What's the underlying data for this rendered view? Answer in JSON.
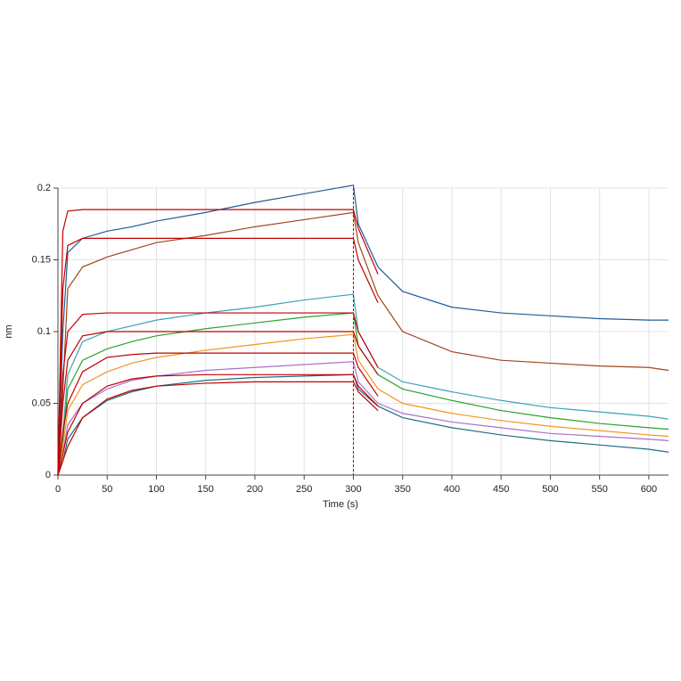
{
  "chart_data": {
    "type": "line",
    "x_label": "Time (s)",
    "y_label": "nm",
    "x": [
      0,
      5,
      10,
      25,
      50,
      75,
      100,
      150,
      200,
      250,
      300,
      305,
      325,
      350,
      400,
      450,
      500,
      550,
      600,
      620
    ],
    "series": [
      {
        "color": "#1f5c99",
        "values": [
          0,
          0.1,
          0.155,
          0.165,
          0.17,
          0.173,
          0.177,
          0.183,
          0.19,
          0.196,
          0.202,
          0.175,
          0.145,
          0.128,
          0.117,
          0.113,
          0.111,
          0.109,
          0.108,
          0.108
        ]
      },
      {
        "color": "#a0461c",
        "values": [
          0,
          0.06,
          0.13,
          0.145,
          0.152,
          0.157,
          0.162,
          0.167,
          0.173,
          0.178,
          0.183,
          0.162,
          0.125,
          0.1,
          0.086,
          0.08,
          0.078,
          0.076,
          0.075,
          0.073
        ]
      },
      {
        "color": "#3aa3b3",
        "values": [
          0,
          0.03,
          0.07,
          0.093,
          0.1,
          0.104,
          0.108,
          0.113,
          0.117,
          0.122,
          0.126,
          0.1,
          0.075,
          0.065,
          0.058,
          0.052,
          0.047,
          0.044,
          0.041,
          0.039
        ]
      },
      {
        "color": "#2ca02c",
        "values": [
          0,
          0.025,
          0.06,
          0.08,
          0.088,
          0.093,
          0.097,
          0.102,
          0.106,
          0.11,
          0.113,
          0.09,
          0.07,
          0.06,
          0.052,
          0.045,
          0.04,
          0.036,
          0.033,
          0.032
        ]
      },
      {
        "color": "#f0961e",
        "values": [
          0,
          0.02,
          0.045,
          0.063,
          0.072,
          0.078,
          0.082,
          0.087,
          0.091,
          0.095,
          0.098,
          0.08,
          0.06,
          0.05,
          0.043,
          0.038,
          0.034,
          0.031,
          0.028,
          0.027
        ]
      },
      {
        "color": "#a86fd0",
        "values": [
          0,
          0.015,
          0.035,
          0.05,
          0.06,
          0.066,
          0.069,
          0.073,
          0.075,
          0.077,
          0.079,
          0.065,
          0.05,
          0.043,
          0.037,
          0.033,
          0.029,
          0.027,
          0.025,
          0.024
        ]
      },
      {
        "color": "#1e6e80",
        "values": [
          0,
          0.01,
          0.025,
          0.04,
          0.052,
          0.058,
          0.062,
          0.066,
          0.068,
          0.069,
          0.07,
          0.06,
          0.048,
          0.04,
          0.033,
          0.028,
          0.024,
          0.021,
          0.018,
          0.016
        ]
      },
      {
        "color": "#c00000",
        "values": [
          0,
          0.17,
          0.184,
          0.185,
          0.185,
          0.185,
          0.185,
          0.185,
          0.185,
          0.185,
          0.185,
          0.172,
          0.14,
          null,
          null,
          null,
          null,
          null,
          null,
          null
        ]
      },
      {
        "color": "#c00000",
        "values": [
          0,
          0.13,
          0.16,
          0.165,
          0.165,
          0.165,
          0.165,
          0.165,
          0.165,
          0.165,
          0.165,
          0.15,
          0.12,
          null,
          null,
          null,
          null,
          null,
          null,
          null
        ]
      },
      {
        "color": "#c00000",
        "values": [
          0,
          0.07,
          0.1,
          0.112,
          0.113,
          0.113,
          0.113,
          0.113,
          0.113,
          0.113,
          0.113,
          0.1,
          0.075,
          null,
          null,
          null,
          null,
          null,
          null,
          null
        ]
      },
      {
        "color": "#c00000",
        "values": [
          0,
          0.05,
          0.08,
          0.097,
          0.1,
          0.1,
          0.1,
          0.1,
          0.1,
          0.1,
          0.1,
          0.09,
          0.07,
          null,
          null,
          null,
          null,
          null,
          null,
          null
        ]
      },
      {
        "color": "#c00000",
        "values": [
          0,
          0.03,
          0.05,
          0.072,
          0.082,
          0.084,
          0.085,
          0.085,
          0.085,
          0.085,
          0.085,
          0.075,
          0.055,
          null,
          null,
          null,
          null,
          null,
          null,
          null
        ]
      },
      {
        "color": "#c00000",
        "values": [
          0,
          0.015,
          0.03,
          0.05,
          0.062,
          0.067,
          0.069,
          0.07,
          0.07,
          0.07,
          0.07,
          0.062,
          0.048,
          null,
          null,
          null,
          null,
          null,
          null,
          null
        ]
      },
      {
        "color": "#c00000",
        "values": [
          0,
          0.01,
          0.02,
          0.04,
          0.053,
          0.059,
          0.062,
          0.064,
          0.065,
          0.065,
          0.065,
          0.058,
          0.045,
          null,
          null,
          null,
          null,
          null,
          null,
          null
        ]
      }
    ],
    "vline": {
      "value": 300,
      "color": "#c00000"
    },
    "xlim": [
      0,
      620
    ],
    "xticks": [
      0,
      50,
      100,
      150,
      200,
      250,
      300,
      350,
      400,
      450,
      500,
      550,
      600
    ],
    "ylim": [
      0,
      0.2
    ],
    "yticks": [
      0,
      0.05,
      0.1,
      0.15,
      0.2
    ],
    "grid": true
  }
}
